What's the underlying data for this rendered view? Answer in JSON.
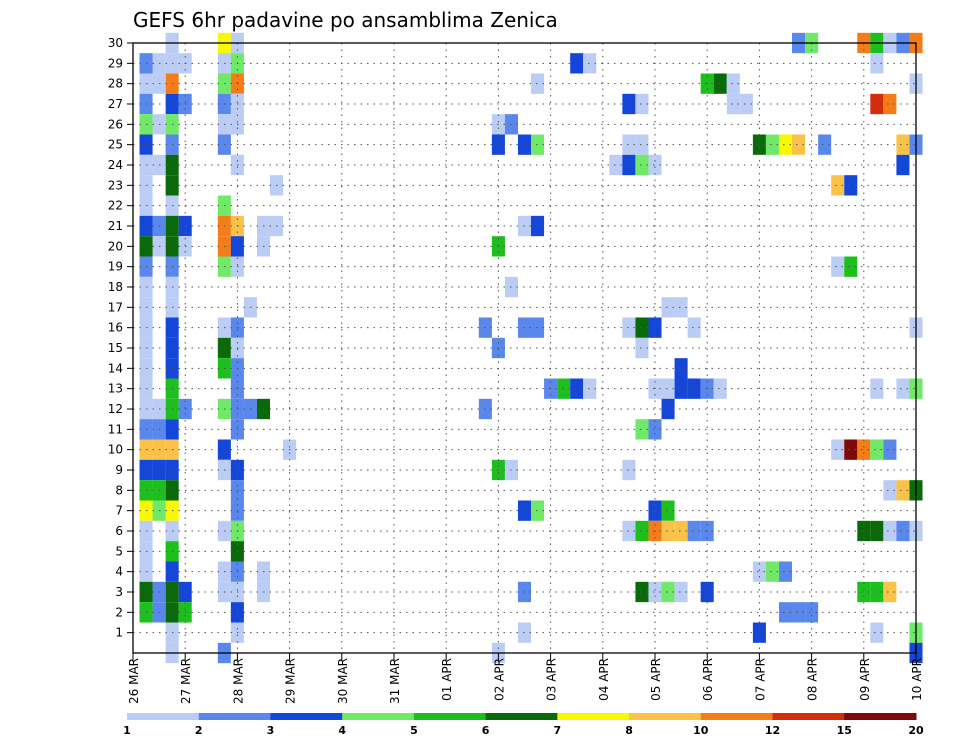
{
  "chart_data": {
    "type": "heatmap",
    "title": "GEFS 6hr padavine po ansamblima Zenica",
    "xlabel": "",
    "ylabel": "",
    "x_ticks": [
      "26 MAR",
      "27 MAR",
      "28 MAR",
      "29 MAR",
      "30 MAR",
      "31 MAR",
      "01 APR",
      "02 APR",
      "03 APR",
      "04 APR",
      "05 APR",
      "06 APR",
      "07 APR",
      "08 APR",
      "09 APR",
      "10 APR"
    ],
    "y_ticks": [
      "1",
      "2",
      "3",
      "4",
      "5",
      "6",
      "7",
      "8",
      "9",
      "10",
      "11",
      "12",
      "13",
      "14",
      "15",
      "16",
      "17",
      "18",
      "19",
      "20",
      "21",
      "22",
      "23",
      "24",
      "25",
      "26",
      "27",
      "28",
      "29",
      "30"
    ],
    "x_range": [
      0,
      15
    ],
    "y_range": [
      0,
      30
    ],
    "grid": true,
    "colorbar": {
      "position": "bottom",
      "labels": [
        "1",
        "2",
        "3",
        "4",
        "5",
        "6",
        "7",
        "8",
        "10",
        "12",
        "15",
        "20"
      ],
      "colors": [
        "#bccdf5",
        "#5a87ec",
        "#1446d9",
        "#70e868",
        "#1dbf1d",
        "#0a6a0a",
        "#f8f800",
        "#fbc24a",
        "#f47d1a",
        "#d42d0b",
        "#7d0a0a"
      ]
    },
    "x_unit": "days since 26 MAR 00Z, 6-hour steps",
    "cells": [
      [
        0.75,
        30,
        0
      ],
      [
        0.75,
        29,
        0
      ],
      [
        0.75,
        28,
        8
      ],
      [
        0.75,
        27,
        2
      ],
      [
        0.75,
        26,
        3
      ],
      [
        0.75,
        25,
        1
      ],
      [
        0.75,
        24,
        5
      ],
      [
        0.75,
        23,
        5
      ],
      [
        0.75,
        22,
        0
      ],
      [
        0.75,
        21,
        5
      ],
      [
        0.75,
        20,
        5
      ],
      [
        0.75,
        19,
        1
      ],
      [
        0.75,
        18,
        0
      ],
      [
        0.75,
        17,
        0
      ],
      [
        0.75,
        16,
        2
      ],
      [
        0.75,
        15,
        2
      ],
      [
        0.75,
        14,
        2
      ],
      [
        0.75,
        13,
        4
      ],
      [
        0.75,
        12,
        4
      ],
      [
        0.75,
        11,
        2
      ],
      [
        0.75,
        10,
        7
      ],
      [
        0.75,
        9,
        2
      ],
      [
        0.75,
        8,
        5
      ],
      [
        0.75,
        7,
        6
      ],
      [
        0.75,
        6,
        0
      ],
      [
        0.75,
        5,
        4
      ],
      [
        0.75,
        4,
        2
      ],
      [
        0.75,
        3,
        5
      ],
      [
        0.75,
        2,
        5
      ],
      [
        0.75,
        1,
        0
      ],
      [
        0.75,
        0,
        0
      ],
      [
        0.5,
        29,
        0
      ],
      [
        0.5,
        28,
        0
      ],
      [
        0.5,
        26,
        0
      ],
      [
        0.5,
        24,
        0
      ],
      [
        0.5,
        21,
        1
      ],
      [
        0.5,
        20,
        0
      ],
      [
        0.5,
        12,
        0
      ],
      [
        0.5,
        11,
        1
      ],
      [
        0.5,
        10,
        7
      ],
      [
        0.5,
        9,
        2
      ],
      [
        0.5,
        8,
        4
      ],
      [
        0.5,
        7,
        3
      ],
      [
        0.5,
        3,
        1
      ],
      [
        0.5,
        2,
        1
      ],
      [
        0.25,
        29,
        1
      ],
      [
        0.25,
        28,
        0
      ],
      [
        0.25,
        27,
        1
      ],
      [
        0.25,
        26,
        3
      ],
      [
        0.25,
        25,
        2
      ],
      [
        0.25,
        24,
        0
      ],
      [
        0.25,
        23,
        0
      ],
      [
        0.25,
        22,
        0
      ],
      [
        0.25,
        21,
        2
      ],
      [
        0.25,
        20,
        5
      ],
      [
        0.25,
        19,
        1
      ],
      [
        0.25,
        18,
        0
      ],
      [
        0.25,
        17,
        0
      ],
      [
        0.25,
        16,
        0
      ],
      [
        0.25,
        15,
        0
      ],
      [
        0.25,
        14,
        0
      ],
      [
        0.25,
        13,
        0
      ],
      [
        0.25,
        12,
        0
      ],
      [
        0.25,
        11,
        1
      ],
      [
        0.25,
        10,
        7
      ],
      [
        0.25,
        9,
        2
      ],
      [
        0.25,
        8,
        4
      ],
      [
        0.25,
        7,
        6
      ],
      [
        0.25,
        6,
        0
      ],
      [
        0.25,
        5,
        0
      ],
      [
        0.25,
        4,
        0
      ],
      [
        0.25,
        3,
        5
      ],
      [
        0.25,
        2,
        4
      ],
      [
        1.0,
        29,
        0
      ],
      [
        1.0,
        27,
        1
      ],
      [
        1.0,
        21,
        2
      ],
      [
        1.0,
        20,
        0
      ],
      [
        1.0,
        12,
        1
      ],
      [
        1.0,
        3,
        2
      ],
      [
        1.0,
        2,
        4
      ],
      [
        1.75,
        30,
        6
      ],
      [
        1.75,
        29,
        0
      ],
      [
        1.75,
        28,
        3
      ],
      [
        1.75,
        27,
        1
      ],
      [
        1.75,
        26,
        0
      ],
      [
        1.75,
        25,
        1
      ],
      [
        1.75,
        22,
        3
      ],
      [
        1.75,
        21,
        8
      ],
      [
        1.75,
        20,
        8
      ],
      [
        1.75,
        19,
        3
      ],
      [
        1.75,
        16,
        0
      ],
      [
        1.75,
        15,
        5
      ],
      [
        1.75,
        14,
        4
      ],
      [
        1.75,
        12,
        3
      ],
      [
        1.75,
        10,
        2
      ],
      [
        1.75,
        9,
        0
      ],
      [
        1.75,
        6,
        0
      ],
      [
        1.75,
        4,
        0
      ],
      [
        1.75,
        3,
        0
      ],
      [
        1.75,
        0,
        1
      ],
      [
        2.0,
        30,
        0
      ],
      [
        2.0,
        29,
        3
      ],
      [
        2.0,
        28,
        8
      ],
      [
        2.0,
        27,
        0
      ],
      [
        2.0,
        26,
        0
      ],
      [
        2.0,
        24,
        0
      ],
      [
        2.0,
        21,
        7
      ],
      [
        2.0,
        20,
        2
      ],
      [
        2.0,
        19,
        0
      ],
      [
        2.0,
        16,
        1
      ],
      [
        2.0,
        15,
        0
      ],
      [
        2.0,
        14,
        1
      ],
      [
        2.0,
        13,
        1
      ],
      [
        2.0,
        12,
        1
      ],
      [
        2.0,
        11,
        1
      ],
      [
        2.0,
        9,
        2
      ],
      [
        2.0,
        8,
        1
      ],
      [
        2.0,
        7,
        1
      ],
      [
        2.0,
        6,
        3
      ],
      [
        2.0,
        5,
        5
      ],
      [
        2.0,
        4,
        1
      ],
      [
        2.0,
        3,
        0
      ],
      [
        2.0,
        2,
        2
      ],
      [
        2.0,
        1,
        0
      ],
      [
        2.25,
        17,
        0
      ],
      [
        2.25,
        12,
        1
      ],
      [
        2.5,
        21,
        0
      ],
      [
        2.5,
        20,
        0
      ],
      [
        2.5,
        12,
        5
      ],
      [
        2.5,
        4,
        0
      ],
      [
        2.5,
        3,
        0
      ],
      [
        2.75,
        23,
        0
      ],
      [
        2.75,
        21,
        0
      ],
      [
        3.0,
        10,
        0
      ],
      [
        6.75,
        16,
        1
      ],
      [
        6.75,
        12,
        1
      ],
      [
        7.0,
        26,
        0
      ],
      [
        7.0,
        25,
        2
      ],
      [
        7.0,
        20,
        4
      ],
      [
        7.0,
        15,
        1
      ],
      [
        7.0,
        9,
        4
      ],
      [
        7.0,
        0,
        0
      ],
      [
        7.25,
        26,
        1
      ],
      [
        7.25,
        18,
        0
      ],
      [
        7.25,
        9,
        0
      ],
      [
        7.5,
        25,
        2
      ],
      [
        7.5,
        21,
        0
      ],
      [
        7.5,
        16,
        1
      ],
      [
        7.5,
        7,
        2
      ],
      [
        7.5,
        3,
        1
      ],
      [
        7.5,
        1,
        0
      ],
      [
        7.75,
        28,
        0
      ],
      [
        7.75,
        25,
        3
      ],
      [
        7.75,
        21,
        2
      ],
      [
        7.75,
        16,
        1
      ],
      [
        7.75,
        7,
        3
      ],
      [
        8.0,
        13,
        1
      ],
      [
        8.25,
        13,
        4
      ],
      [
        8.5,
        29,
        2
      ],
      [
        8.5,
        13,
        2
      ],
      [
        8.75,
        29,
        0
      ],
      [
        8.75,
        13,
        0
      ],
      [
        9.25,
        24,
        0
      ],
      [
        9.5,
        27,
        2
      ],
      [
        9.5,
        25,
        0
      ],
      [
        9.5,
        24,
        2
      ],
      [
        9.5,
        16,
        0
      ],
      [
        9.5,
        9,
        0
      ],
      [
        9.5,
        6,
        0
      ],
      [
        9.75,
        27,
        0
      ],
      [
        9.75,
        25,
        0
      ],
      [
        9.75,
        24,
        3
      ],
      [
        9.75,
        16,
        5
      ],
      [
        9.75,
        15,
        0
      ],
      [
        9.75,
        11,
        3
      ],
      [
        9.75,
        6,
        4
      ],
      [
        9.75,
        3,
        5
      ],
      [
        10.0,
        24,
        0
      ],
      [
        10.0,
        16,
        2
      ],
      [
        10.0,
        13,
        0
      ],
      [
        10.0,
        11,
        1
      ],
      [
        10.0,
        7,
        2
      ],
      [
        10.0,
        6,
        8
      ],
      [
        10.0,
        3,
        0
      ],
      [
        10.25,
        17,
        0
      ],
      [
        10.25,
        13,
        0
      ],
      [
        10.25,
        12,
        2
      ],
      [
        10.25,
        7,
        4
      ],
      [
        10.25,
        6,
        7
      ],
      [
        10.25,
        3,
        3
      ],
      [
        10.5,
        17,
        0
      ],
      [
        10.5,
        14,
        2
      ],
      [
        10.5,
        13,
        2
      ],
      [
        10.5,
        6,
        7
      ],
      [
        10.5,
        3,
        0
      ],
      [
        10.75,
        16,
        0
      ],
      [
        10.75,
        13,
        2
      ],
      [
        10.75,
        6,
        1
      ],
      [
        11.0,
        28,
        4
      ],
      [
        11.0,
        13,
        1
      ],
      [
        11.0,
        6,
        1
      ],
      [
        11.0,
        3,
        2
      ],
      [
        11.25,
        28,
        5
      ],
      [
        11.25,
        13,
        0
      ],
      [
        11.5,
        28,
        0
      ],
      [
        11.5,
        27,
        0
      ],
      [
        11.75,
        27,
        0
      ],
      [
        12.0,
        25,
        5
      ],
      [
        12.0,
        4,
        0
      ],
      [
        12.0,
        1,
        2
      ],
      [
        12.25,
        25,
        3
      ],
      [
        12.25,
        4,
        3
      ],
      [
        12.5,
        25,
        6
      ],
      [
        12.5,
        4,
        1
      ],
      [
        12.5,
        2,
        1
      ],
      [
        12.75,
        25,
        7
      ],
      [
        12.75,
        2,
        1
      ],
      [
        12.75,
        30,
        1
      ],
      [
        13.0,
        30,
        3
      ],
      [
        13.0,
        2,
        1
      ],
      [
        13.25,
        25,
        1
      ],
      [
        13.5,
        23,
        7
      ],
      [
        13.5,
        19,
        0
      ],
      [
        13.5,
        10,
        0
      ],
      [
        13.75,
        23,
        2
      ],
      [
        13.75,
        19,
        4
      ],
      [
        13.75,
        10,
        10
      ],
      [
        14.0,
        30,
        8
      ],
      [
        14.0,
        10,
        8
      ],
      [
        14.0,
        6,
        5
      ],
      [
        14.0,
        3,
        4
      ],
      [
        14.25,
        30,
        4
      ],
      [
        14.25,
        29,
        0
      ],
      [
        14.25,
        27,
        9
      ],
      [
        14.25,
        13,
        0
      ],
      [
        14.25,
        10,
        3
      ],
      [
        14.25,
        6,
        5
      ],
      [
        14.25,
        3,
        4
      ],
      [
        14.25,
        1,
        0
      ],
      [
        14.5,
        30,
        0
      ],
      [
        14.5,
        27,
        8
      ],
      [
        14.5,
        10,
        1
      ],
      [
        14.5,
        8,
        0
      ],
      [
        14.5,
        6,
        0
      ],
      [
        14.5,
        3,
        7
      ],
      [
        14.75,
        30,
        1
      ],
      [
        14.75,
        25,
        7
      ],
      [
        14.75,
        24,
        2
      ],
      [
        14.75,
        13,
        0
      ],
      [
        14.75,
        8,
        7
      ],
      [
        14.75,
        6,
        1
      ],
      [
        15.0,
        30,
        8
      ],
      [
        15.0,
        28,
        0
      ],
      [
        15.0,
        25,
        1
      ],
      [
        15.0,
        16,
        0
      ],
      [
        15.0,
        13,
        3
      ],
      [
        15.0,
        8,
        5
      ],
      [
        15.0,
        6,
        0
      ],
      [
        15.0,
        1,
        3
      ],
      [
        15.0,
        0,
        2
      ]
    ]
  }
}
